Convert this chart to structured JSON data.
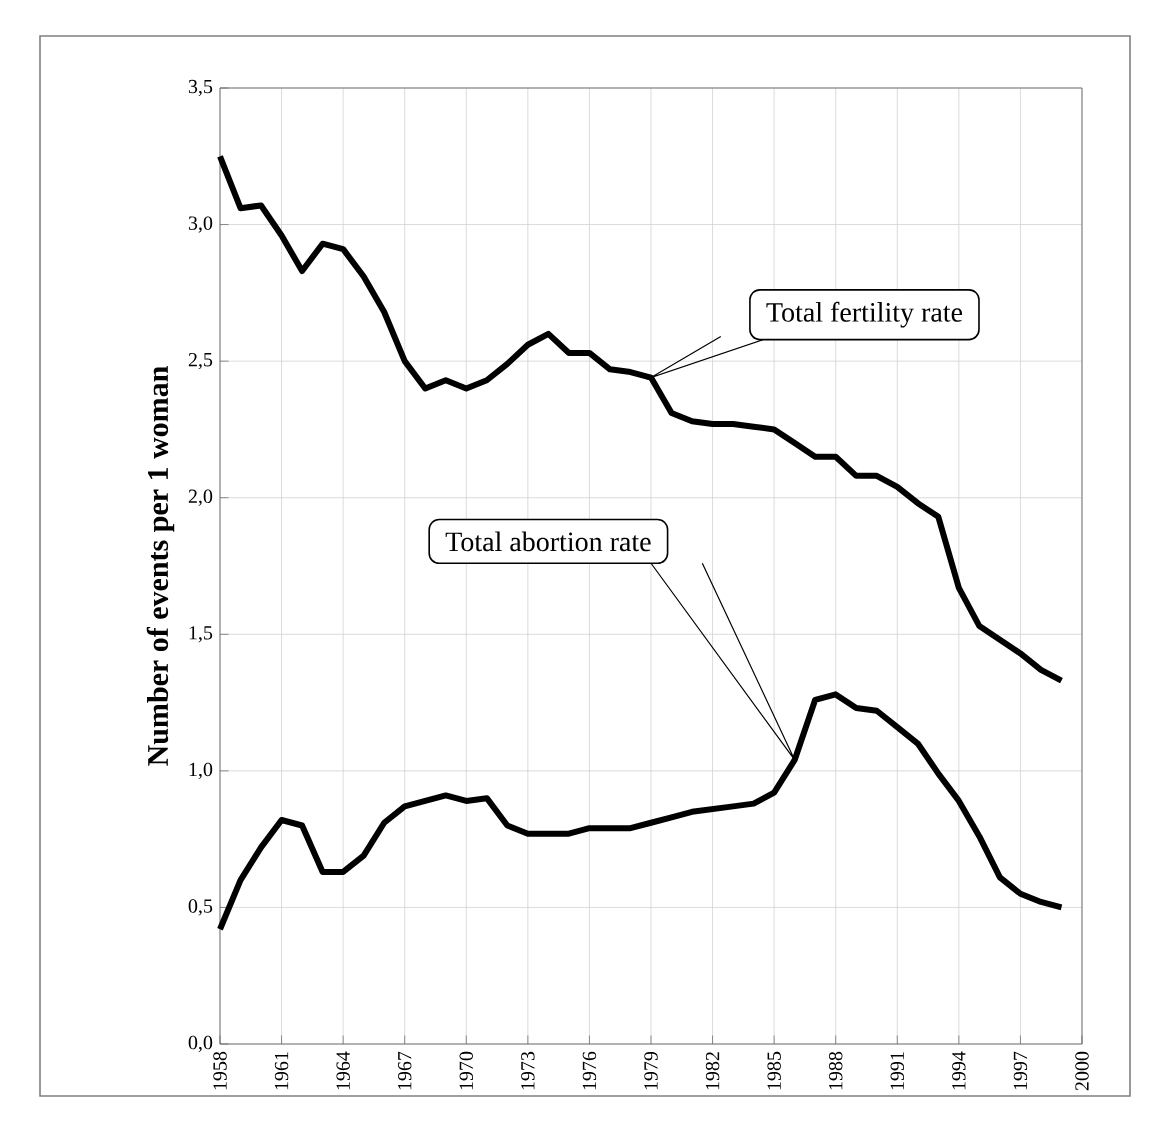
{
  "chart_data": {
    "type": "line",
    "ylabel": "Number of events per 1 woman",
    "x": [
      1958,
      1959,
      1960,
      1961,
      1962,
      1963,
      1964,
      1965,
      1966,
      1967,
      1968,
      1969,
      1970,
      1971,
      1972,
      1973,
      1974,
      1975,
      1976,
      1977,
      1978,
      1979,
      1980,
      1981,
      1982,
      1983,
      1984,
      1985,
      1986,
      1987,
      1988,
      1989,
      1990,
      1991,
      1992,
      1993,
      1994,
      1995,
      1996,
      1997,
      1998,
      1999
    ],
    "series": [
      {
        "color": "#000000",
        "values": [
          3.25,
          3.06,
          3.07,
          2.96,
          2.83,
          2.93,
          2.91,
          2.81,
          2.68,
          2.5,
          2.4,
          2.43,
          2.4,
          2.43,
          2.49,
          2.56,
          2.6,
          2.53,
          2.53,
          2.47,
          2.46,
          2.44,
          2.31,
          2.28,
          2.27,
          2.27,
          2.26,
          2.25,
          2.2,
          2.15,
          2.15,
          2.08,
          2.08,
          2.04,
          1.98,
          1.93,
          1.67,
          1.53,
          1.48,
          1.43,
          1.37,
          1.33
        ]
      },
      {
        "color": "#000000",
        "values": [
          0.42,
          0.6,
          0.72,
          0.82,
          0.8,
          0.63,
          0.63,
          0.69,
          0.81,
          0.87,
          0.89,
          0.91,
          0.89,
          0.9,
          0.8,
          0.77,
          0.77,
          0.77,
          0.79,
          0.79,
          0.79,
          0.81,
          0.83,
          0.85,
          0.86,
          0.87,
          0.88,
          0.92,
          1.04,
          1.26,
          1.28,
          1.23,
          1.22,
          1.16,
          1.1,
          0.99,
          0.89,
          0.76,
          0.61,
          0.55,
          0.52,
          0.5
        ]
      }
    ],
    "annotations": [
      "Total fertility rate",
      "Total abortion rate"
    ],
    "xlim": [
      1958,
      2000
    ],
    "xticks": [
      1958,
      1961,
      1964,
      1967,
      1970,
      1973,
      1976,
      1979,
      1982,
      1985,
      1988,
      1991,
      1994,
      1997,
      2000
    ],
    "ylim": [
      0,
      3.5
    ],
    "yticks": [
      {
        "value": 0,
        "label": "0,0"
      },
      {
        "value": 0.5,
        "label": "0,5"
      },
      {
        "value": 1,
        "label": "1,0"
      },
      {
        "value": 1.5,
        "label": "1,5"
      },
      {
        "value": 2,
        "label": "2,0"
      },
      {
        "value": 2.5,
        "label": "2,5"
      },
      {
        "value": 3,
        "label": "3,0"
      },
      {
        "value": 3.5,
        "label": "3,5"
      }
    ],
    "grid": true,
    "marker": "none",
    "line_style": "solid"
  }
}
